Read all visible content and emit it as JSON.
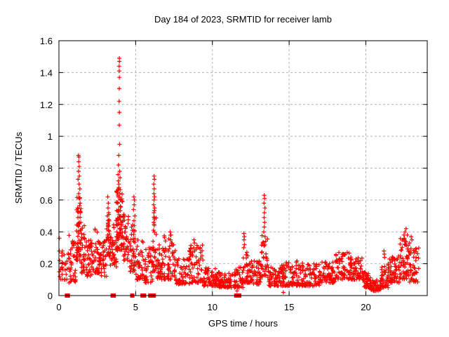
{
  "chart_data": {
    "type": "scatter",
    "title": "Day 184 of 2023, SRMTID for receiver lamb",
    "xlabel": "GPS time / hours",
    "ylabel": "SRMTID / TECUs",
    "xlim": [
      0,
      24
    ],
    "ylim": [
      0,
      1.6
    ],
    "xticks": [
      0,
      5,
      10,
      15,
      20
    ],
    "xtick_labels": [
      "0",
      "5",
      "10",
      "15",
      "20"
    ],
    "yticks": [
      0,
      0.2,
      0.4,
      0.6,
      0.8,
      1.0,
      1.2,
      1.4,
      1.6
    ],
    "ytick_labels": [
      "0",
      "0.2",
      "0.4",
      "0.6",
      "0.8",
      "1",
      "1.2",
      "1.4",
      "1.6"
    ],
    "grid": "dashed, both axes",
    "legend": "none",
    "marker": "plus",
    "colors": {
      "points": "#ff0000",
      "grid": "#b4b4b4",
      "axis": "#000000",
      "background": "#ffffff",
      "text": "#000000"
    },
    "feature_points": [
      [
        0.03,
        0.36
      ],
      [
        0.03,
        0.28
      ],
      [
        0.04,
        0.22
      ],
      [
        0.03,
        0.15
      ],
      [
        0.05,
        0.12
      ],
      [
        1.27,
        0.88
      ],
      [
        1.3,
        0.87
      ],
      [
        1.29,
        0.84
      ],
      [
        1.32,
        0.81
      ],
      [
        1.28,
        0.78
      ],
      [
        1.33,
        0.75
      ],
      [
        1.25,
        0.73
      ],
      [
        1.31,
        0.7
      ],
      [
        1.36,
        0.67
      ],
      [
        1.29,
        0.64
      ],
      [
        1.35,
        0.61
      ],
      [
        1.38,
        0.58
      ],
      [
        1.22,
        0.55
      ],
      [
        1.4,
        0.52
      ],
      [
        1.24,
        0.49
      ],
      [
        1.42,
        0.46
      ],
      [
        3.18,
        0.62
      ],
      [
        3.22,
        0.58
      ],
      [
        3.2,
        0.55
      ],
      [
        3.24,
        0.52
      ],
      [
        3.16,
        0.5
      ],
      [
        3.21,
        0.47
      ],
      [
        3.19,
        0.44
      ],
      [
        3.23,
        0.41
      ],
      [
        3.17,
        0.38
      ],
      [
        3.25,
        0.35
      ],
      [
        3.93,
        1.49
      ],
      [
        3.94,
        1.47
      ],
      [
        3.92,
        1.44
      ],
      [
        3.93,
        1.41
      ],
      [
        3.94,
        1.37
      ],
      [
        3.93,
        1.3
      ],
      [
        3.92,
        1.22
      ],
      [
        3.94,
        1.15
      ],
      [
        3.93,
        1.07
      ],
      [
        3.95,
        0.95
      ],
      [
        3.9,
        0.88
      ],
      [
        3.88,
        0.82
      ],
      [
        3.96,
        0.78
      ],
      [
        3.85,
        0.76
      ],
      [
        3.98,
        0.74
      ],
      [
        3.87,
        0.72
      ],
      [
        3.91,
        0.7
      ],
      [
        3.89,
        0.67
      ],
      [
        3.97,
        0.64
      ],
      [
        3.86,
        0.62
      ],
      [
        3.99,
        0.6
      ],
      [
        3.84,
        0.58
      ],
      [
        4.0,
        0.56
      ],
      [
        3.83,
        0.53
      ],
      [
        4.02,
        0.5
      ],
      [
        3.82,
        0.48
      ],
      [
        4.04,
        0.46
      ],
      [
        3.8,
        0.44
      ],
      [
        4.06,
        0.42
      ],
      [
        3.78,
        0.4
      ],
      [
        4.88,
        0.62
      ],
      [
        4.92,
        0.6
      ],
      [
        4.9,
        0.57
      ],
      [
        4.86,
        0.54
      ],
      [
        4.94,
        0.5
      ],
      [
        4.89,
        0.47
      ],
      [
        4.91,
        0.44
      ],
      [
        4.87,
        0.41
      ],
      [
        6.2,
        0.75
      ],
      [
        6.22,
        0.73
      ],
      [
        6.18,
        0.7
      ],
      [
        6.21,
        0.67
      ],
      [
        6.19,
        0.64
      ],
      [
        6.23,
        0.62
      ],
      [
        6.2,
        0.6
      ],
      [
        6.17,
        0.57
      ],
      [
        6.24,
        0.55
      ],
      [
        6.19,
        0.52
      ],
      [
        6.22,
        0.49
      ],
      [
        6.18,
        0.46
      ],
      [
        6.21,
        0.44
      ],
      [
        6.16,
        0.41
      ],
      [
        7.25,
        0.4
      ],
      [
        7.3,
        0.38
      ],
      [
        7.28,
        0.35
      ],
      [
        7.33,
        0.33
      ],
      [
        7.22,
        0.31
      ],
      [
        8.8,
        0.35
      ],
      [
        8.83,
        0.33
      ],
      [
        8.78,
        0.3
      ],
      [
        8.85,
        0.28
      ],
      [
        9.2,
        0.3
      ],
      [
        9.23,
        0.27
      ],
      [
        12.05,
        0.39
      ],
      [
        12.08,
        0.37
      ],
      [
        12.06,
        0.35
      ],
      [
        12.09,
        0.32
      ],
      [
        12.04,
        0.3
      ],
      [
        13.38,
        0.63
      ],
      [
        13.4,
        0.61
      ],
      [
        13.36,
        0.58
      ],
      [
        13.42,
        0.55
      ],
      [
        13.39,
        0.52
      ],
      [
        13.37,
        0.49
      ],
      [
        13.41,
        0.46
      ],
      [
        13.38,
        0.43
      ],
      [
        13.35,
        0.4
      ],
      [
        13.43,
        0.37
      ],
      [
        21.18,
        0.28
      ],
      [
        21.2,
        0.26
      ],
      [
        21.22,
        0.24
      ],
      [
        22.48,
        0.38
      ],
      [
        22.55,
        0.4
      ],
      [
        22.62,
        0.42
      ],
      [
        22.52,
        0.36
      ],
      [
        22.7,
        0.38
      ],
      [
        22.95,
        0.37
      ],
      [
        23.0,
        0.35
      ],
      [
        22.85,
        0.33
      ],
      [
        14.62,
        0.02
      ],
      [
        11.6,
        0.03
      ]
    ],
    "zero_value_hours": [
      0.52,
      0.58,
      3.5,
      3.57,
      4.78,
      5.45,
      5.55,
      5.95,
      6.05,
      6.18,
      11.55,
      11.65,
      11.75
    ],
    "noise_seed": 42,
    "noise_segments": [
      [
        0.1,
        0.6,
        0.1,
        0.32,
        22
      ],
      [
        0.6,
        1.1,
        0.08,
        0.38,
        40
      ],
      [
        1.1,
        1.45,
        0.22,
        0.62,
        55
      ],
      [
        1.45,
        1.8,
        0.14,
        0.45,
        32
      ],
      [
        1.8,
        2.3,
        0.12,
        0.36,
        45
      ],
      [
        2.3,
        2.7,
        0.14,
        0.42,
        40
      ],
      [
        2.7,
        3.1,
        0.12,
        0.36,
        35
      ],
      [
        3.1,
        3.35,
        0.25,
        0.52,
        28
      ],
      [
        3.35,
        3.75,
        0.18,
        0.5,
        42
      ],
      [
        3.75,
        4.15,
        0.28,
        0.68,
        65
      ],
      [
        4.15,
        4.55,
        0.22,
        0.52,
        40
      ],
      [
        4.55,
        5.0,
        0.15,
        0.45,
        40
      ],
      [
        5.0,
        5.5,
        0.1,
        0.35,
        35
      ],
      [
        5.5,
        6.1,
        0.08,
        0.3,
        40
      ],
      [
        6.1,
        6.35,
        0.15,
        0.55,
        28
      ],
      [
        6.35,
        6.8,
        0.1,
        0.32,
        35
      ],
      [
        6.8,
        7.6,
        0.1,
        0.38,
        60
      ],
      [
        7.6,
        8.5,
        0.07,
        0.24,
        60
      ],
      [
        8.5,
        9.4,
        0.08,
        0.32,
        60
      ],
      [
        9.4,
        10.3,
        0.06,
        0.18,
        65
      ],
      [
        10.3,
        11.5,
        0.05,
        0.15,
        80
      ],
      [
        11.5,
        12.0,
        0.05,
        0.18,
        38
      ],
      [
        12.0,
        12.45,
        0.08,
        0.28,
        35
      ],
      [
        12.45,
        13.2,
        0.07,
        0.22,
        52
      ],
      [
        13.2,
        13.6,
        0.12,
        0.4,
        30
      ],
      [
        13.6,
        14.3,
        0.06,
        0.18,
        48
      ],
      [
        14.3,
        15.2,
        0.06,
        0.21,
        62
      ],
      [
        15.2,
        16.0,
        0.06,
        0.22,
        58
      ],
      [
        16.0,
        17.0,
        0.06,
        0.2,
        68
      ],
      [
        17.0,
        18.0,
        0.08,
        0.22,
        68
      ],
      [
        18.0,
        19.0,
        0.1,
        0.28,
        72
      ],
      [
        19.0,
        19.8,
        0.1,
        0.25,
        58
      ],
      [
        19.8,
        20.3,
        0.05,
        0.15,
        42
      ],
      [
        20.3,
        21.0,
        0.03,
        0.1,
        58
      ],
      [
        21.0,
        21.5,
        0.05,
        0.2,
        40
      ],
      [
        21.5,
        22.2,
        0.08,
        0.26,
        55
      ],
      [
        22.2,
        22.8,
        0.1,
        0.36,
        55
      ],
      [
        22.8,
        23.45,
        0.08,
        0.3,
        45
      ]
    ]
  }
}
